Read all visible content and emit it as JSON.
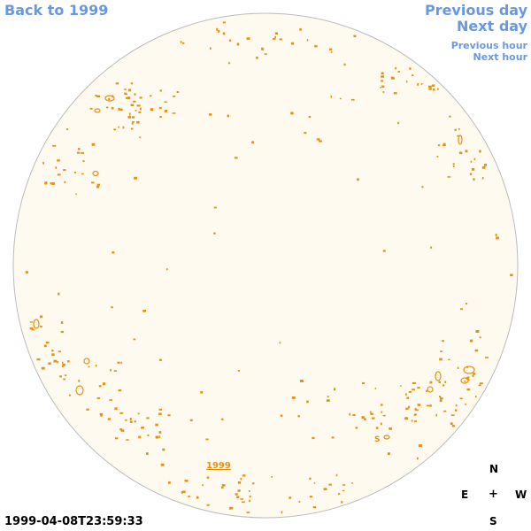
{
  "nav": {
    "back_label": "Back to 1999",
    "previous_day_label": "Previous day",
    "next_day_label": "Next day",
    "previous_hour_label": "Previous hour",
    "next_hour_label": "Next hour"
  },
  "timestamp": "1999-04-08T23:59:33",
  "year_marker_label": "1999",
  "compass": {
    "north": "N",
    "east": "E",
    "center": "+",
    "west": "W",
    "south": "S"
  },
  "region_label": "S",
  "colors": {
    "disk_fill": "#fffaf0",
    "disk_stroke": "#bbbbbb",
    "contour": "#e89010",
    "link": "#6a98e0"
  }
}
